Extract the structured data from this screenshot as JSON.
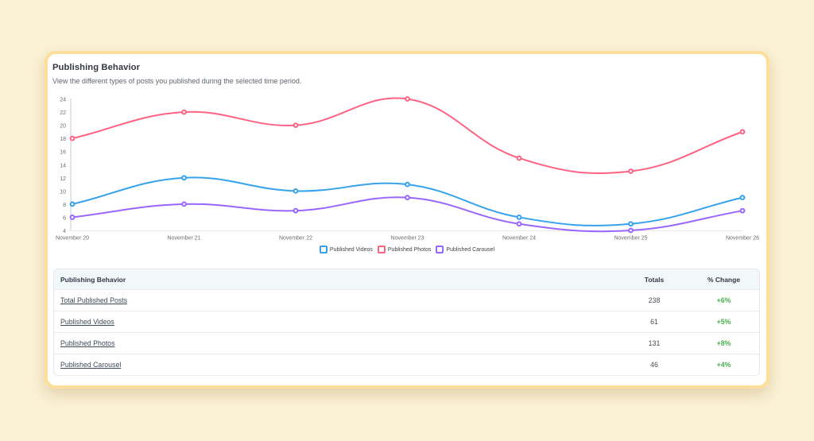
{
  "card": {
    "title": "Publishing Behavior",
    "subtitle": "View the different types of posts you published during the selected time period.",
    "border_color": "#fcdf9b",
    "background": "#ffffff"
  },
  "page": {
    "background": "#fbf1d5"
  },
  "chart_data": {
    "type": "line",
    "x": [
      "November 20",
      "November 21",
      "November 22",
      "November 23",
      "November 24",
      "November 25",
      "November 26"
    ],
    "series": [
      {
        "name": "Published Videos",
        "color": "#36a2eb",
        "values": [
          8,
          12,
          10,
          11,
          6,
          5,
          9
        ]
      },
      {
        "name": "Published Photos",
        "color": "#ff6384",
        "values": [
          18,
          22,
          20,
          24,
          15,
          13,
          19
        ]
      },
      {
        "name": "Published Carousel",
        "color": "#9966ff",
        "values": [
          6,
          8,
          7,
          9,
          5,
          4,
          7
        ]
      }
    ],
    "ylim": [
      4,
      24
    ],
    "ytick_step": 2,
    "grid": false,
    "legend_position": "bottom",
    "point_style": "circle",
    "line_smooth": true
  },
  "table": {
    "headers": [
      "Publishing Behavior",
      "Totals",
      "% Change"
    ],
    "rows": [
      {
        "label": "Total Published Posts",
        "total": "238",
        "change": "+6%"
      },
      {
        "label": "Published Videos",
        "total": "61",
        "change": "+5%"
      },
      {
        "label": "Published Photos",
        "total": "131",
        "change": "+8%"
      },
      {
        "label": "Published Carousel",
        "total": "46",
        "change": "+4%"
      }
    ],
    "positive_change_color": "#4caf50"
  }
}
